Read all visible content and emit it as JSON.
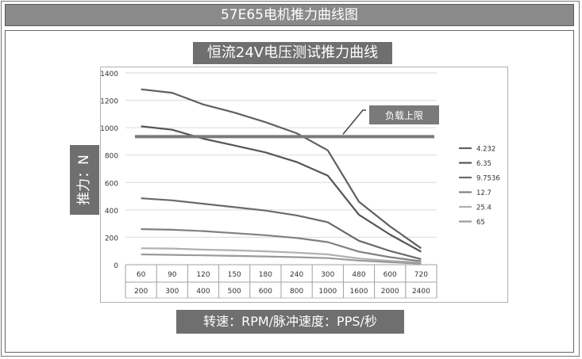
{
  "header": {
    "title": "57E65电机推力曲线图"
  },
  "chart_title": "恒流24V电压测试推力曲线",
  "y_axis_label": "推力：N",
  "x_axis_label": "转速：RPM/脉冲速度：PPS/秒",
  "annotation": {
    "label": "负载上限"
  },
  "colors": {
    "header_bg": "#8a8a8a",
    "label_bg": "#6f6f6f",
    "grid": "#d9d9d9",
    "limit_line": "#7a7a7a"
  },
  "chart_data": {
    "type": "line",
    "categories_rpm": [
      "60",
      "90",
      "120",
      "150",
      "180",
      "240",
      "300",
      "480",
      "600",
      "720"
    ],
    "categories_pps": [
      "200",
      "300",
      "400",
      "500",
      "600",
      "800",
      "1000",
      "1600",
      "2000",
      "2400"
    ],
    "ylim": [
      0,
      1400
    ],
    "yticks": [
      0,
      200,
      400,
      600,
      800,
      1000,
      1200,
      1400
    ],
    "grid": true,
    "legend_position": "right",
    "load_limit": 935,
    "series": [
      {
        "name": "4.232",
        "color": "#606060",
        "values": [
          1280,
          1255,
          1170,
          1110,
          1040,
          960,
          835,
          460,
          280,
          120
        ]
      },
      {
        "name": "6.35",
        "color": "#555555",
        "values": [
          1010,
          985,
          920,
          870,
          820,
          750,
          650,
          365,
          220,
          95
        ]
      },
      {
        "name": "9.7536",
        "color": "#6a6a6a",
        "values": [
          485,
          470,
          445,
          420,
          395,
          360,
          310,
          175,
          100,
          40
        ]
      },
      {
        "name": "12.7",
        "color": "#808080",
        "values": [
          260,
          255,
          245,
          230,
          215,
          195,
          165,
          95,
          55,
          25
        ]
      },
      {
        "name": "25.4",
        "color": "#b0b0b0",
        "values": [
          120,
          118,
          110,
          105,
          98,
          88,
          75,
          45,
          28,
          15
        ]
      },
      {
        "name": "65",
        "color": "#9a9a9a",
        "values": [
          75,
          72,
          68,
          64,
          60,
          55,
          48,
          30,
          18,
          8
        ]
      }
    ]
  }
}
